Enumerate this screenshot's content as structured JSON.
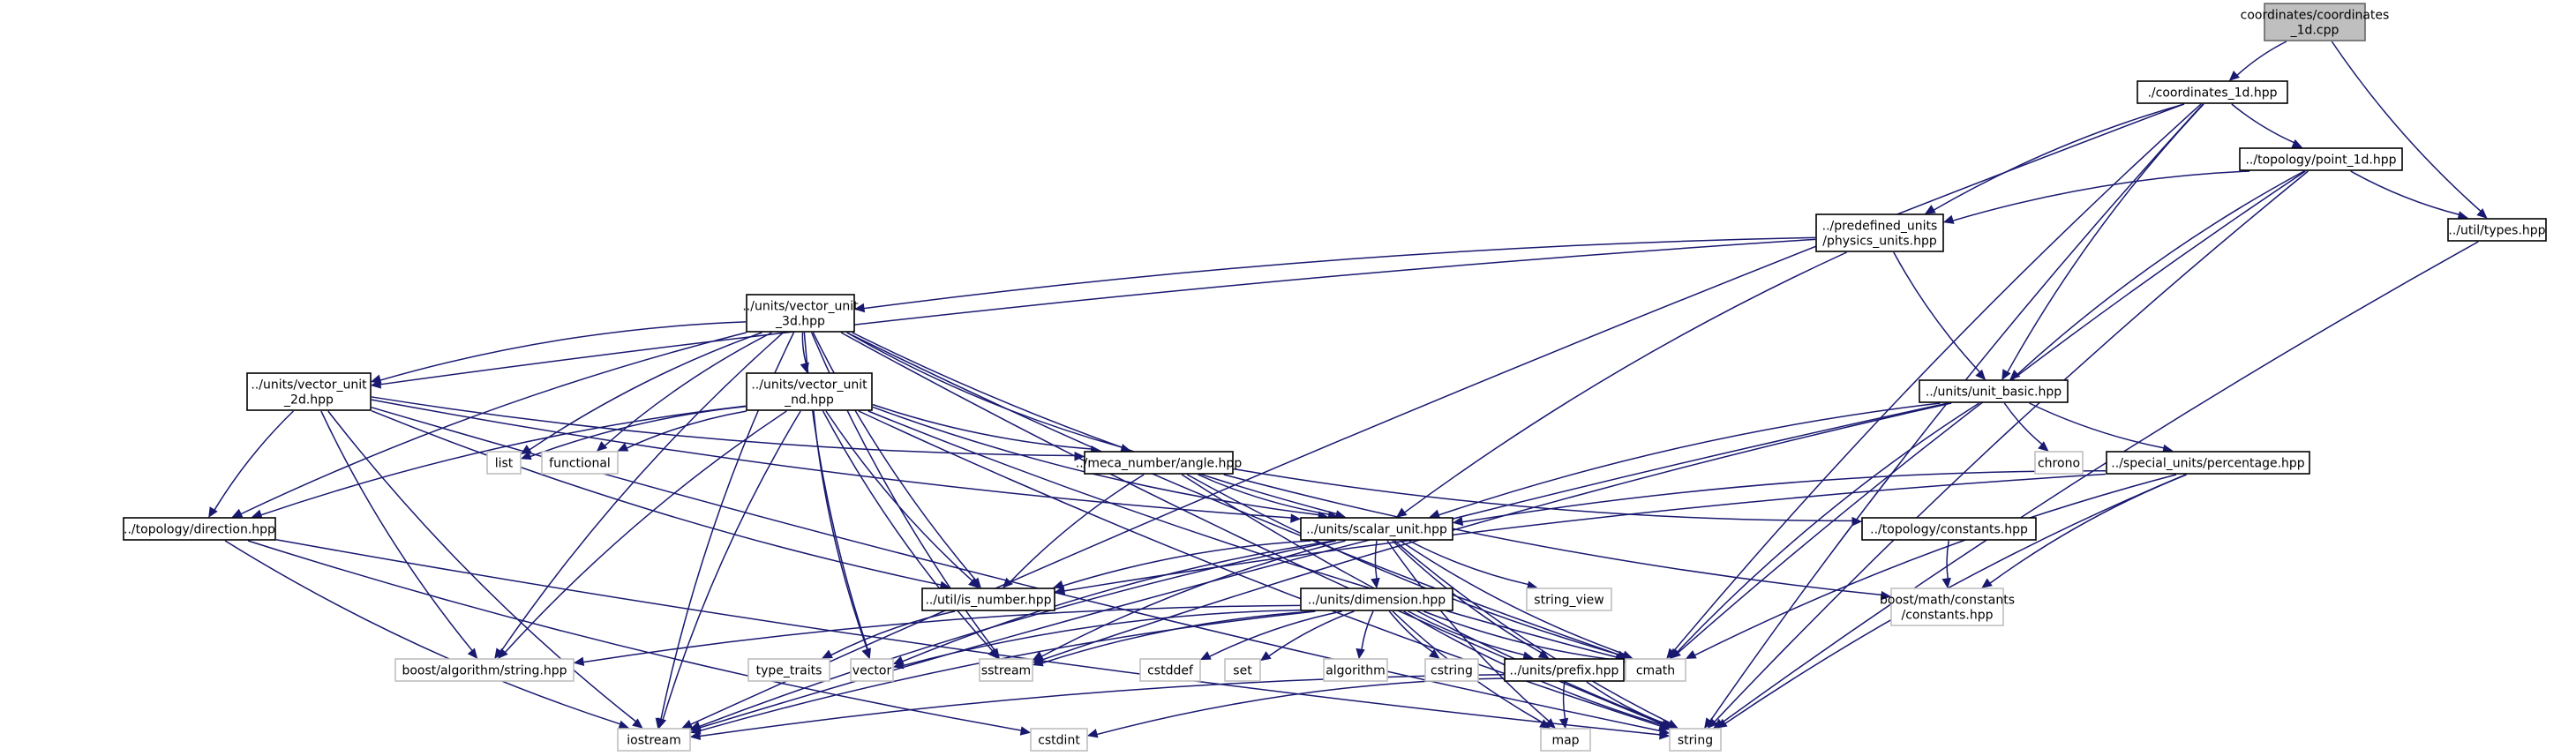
{
  "diagram": {
    "type": "include-dependency-graph",
    "colors": {
      "edge": "#191970",
      "root_fill": "#bfbfbf",
      "root_border": "#666666",
      "project_border": "#000000",
      "system_border": "#bfbfbf"
    },
    "nodes": [
      {
        "id": "root",
        "lines": [
          "coordinates/coordinates",
          "_1d.cpp"
        ],
        "kind": "root"
      },
      {
        "id": "coord1d",
        "lines": [
          "./coordinates_1d.hpp"
        ],
        "kind": "project"
      },
      {
        "id": "point1d",
        "lines": [
          "../topology/point_1d.hpp"
        ],
        "kind": "project"
      },
      {
        "id": "types",
        "lines": [
          "../util/types.hpp"
        ],
        "kind": "project"
      },
      {
        "id": "physunits",
        "lines": [
          "../predefined_units",
          "/physics_units.hpp"
        ],
        "kind": "project"
      },
      {
        "id": "vec3d",
        "lines": [
          "../units/vector_unit",
          "_3d.hpp"
        ],
        "kind": "project"
      },
      {
        "id": "vec2d",
        "lines": [
          "../units/vector_unit",
          "_2d.hpp"
        ],
        "kind": "project"
      },
      {
        "id": "vecnd",
        "lines": [
          "../units/vector_unit",
          "_nd.hpp"
        ],
        "kind": "project"
      },
      {
        "id": "unitbasic",
        "lines": [
          "../units/unit_basic.hpp"
        ],
        "kind": "project"
      },
      {
        "id": "angle",
        "lines": [
          "../meca_number/angle.hpp"
        ],
        "kind": "project"
      },
      {
        "id": "percentage",
        "lines": [
          "../special_units/percentage.hpp"
        ],
        "kind": "project"
      },
      {
        "id": "direction",
        "lines": [
          "../topology/direction.hpp"
        ],
        "kind": "project"
      },
      {
        "id": "scalar",
        "lines": [
          "../units/scalar_unit.hpp"
        ],
        "kind": "project"
      },
      {
        "id": "tconst",
        "lines": [
          "../topology/constants.hpp"
        ],
        "kind": "project"
      },
      {
        "id": "isnumber",
        "lines": [
          "../util/is_number.hpp"
        ],
        "kind": "project"
      },
      {
        "id": "dimension",
        "lines": [
          "../units/dimension.hpp"
        ],
        "kind": "project"
      },
      {
        "id": "prefix",
        "lines": [
          "../units/prefix.hpp"
        ],
        "kind": "project"
      },
      {
        "id": "list",
        "lines": [
          "list"
        ],
        "kind": "system"
      },
      {
        "id": "functional",
        "lines": [
          "functional"
        ],
        "kind": "system"
      },
      {
        "id": "chrono",
        "lines": [
          "chrono"
        ],
        "kind": "system"
      },
      {
        "id": "string_view",
        "lines": [
          "string_view"
        ],
        "kind": "system"
      },
      {
        "id": "boostconst",
        "lines": [
          "boost/math/constants",
          "/constants.hpp"
        ],
        "kind": "system"
      },
      {
        "id": "boostalg",
        "lines": [
          "boost/algorithm/string.hpp"
        ],
        "kind": "system"
      },
      {
        "id": "type_traits",
        "lines": [
          "type_traits"
        ],
        "kind": "system"
      },
      {
        "id": "vector",
        "lines": [
          "vector"
        ],
        "kind": "system"
      },
      {
        "id": "sstream",
        "lines": [
          "sstream"
        ],
        "kind": "system"
      },
      {
        "id": "cstddef",
        "lines": [
          "cstddef"
        ],
        "kind": "system"
      },
      {
        "id": "set",
        "lines": [
          "set"
        ],
        "kind": "system"
      },
      {
        "id": "algorithm",
        "lines": [
          "algorithm"
        ],
        "kind": "system"
      },
      {
        "id": "cstring",
        "lines": [
          "cstring"
        ],
        "kind": "system"
      },
      {
        "id": "cmath",
        "lines": [
          "cmath"
        ],
        "kind": "system"
      },
      {
        "id": "iostream",
        "lines": [
          "iostream"
        ],
        "kind": "system"
      },
      {
        "id": "cstdint",
        "lines": [
          "cstdint"
        ],
        "kind": "system"
      },
      {
        "id": "map",
        "lines": [
          "map"
        ],
        "kind": "system"
      },
      {
        "id": "string",
        "lines": [
          "string"
        ],
        "kind": "system"
      }
    ],
    "edges": [
      [
        "root",
        "coord1d"
      ],
      [
        "root",
        "types"
      ],
      [
        "coord1d",
        "point1d"
      ],
      [
        "coord1d",
        "physunits"
      ],
      [
        "coord1d",
        "unitbasic"
      ],
      [
        "coord1d",
        "iostream"
      ],
      [
        "coord1d",
        "cmath"
      ],
      [
        "coord1d",
        "string"
      ],
      [
        "point1d",
        "types"
      ],
      [
        "point1d",
        "physunits"
      ],
      [
        "point1d",
        "unitbasic"
      ],
      [
        "point1d",
        "cmath"
      ],
      [
        "point1d",
        "string"
      ],
      [
        "types",
        "string"
      ],
      [
        "physunits",
        "vec3d"
      ],
      [
        "physunits",
        "vec2d"
      ],
      [
        "physunits",
        "unitbasic"
      ],
      [
        "physunits",
        "scalar"
      ],
      [
        "vec3d",
        "vec2d"
      ],
      [
        "vec3d",
        "vecnd"
      ],
      [
        "vec3d",
        "angle"
      ],
      [
        "vec3d",
        "direction"
      ],
      [
        "vec3d",
        "scalar"
      ],
      [
        "vec3d",
        "isnumber"
      ],
      [
        "vec3d",
        "list"
      ],
      [
        "vec3d",
        "functional"
      ],
      [
        "vec3d",
        "boostalg"
      ],
      [
        "vec3d",
        "vector"
      ],
      [
        "vec3d",
        "sstream"
      ],
      [
        "vec3d",
        "cmath"
      ],
      [
        "vec3d",
        "iostream"
      ],
      [
        "vec3d",
        "string"
      ],
      [
        "vec2d",
        "angle"
      ],
      [
        "vec2d",
        "direction"
      ],
      [
        "vec2d",
        "scalar"
      ],
      [
        "vec2d",
        "isnumber"
      ],
      [
        "vec2d",
        "boostalg"
      ],
      [
        "vec2d",
        "iostream"
      ],
      [
        "vec2d",
        "string"
      ],
      [
        "vecnd",
        "angle"
      ],
      [
        "vecnd",
        "direction"
      ],
      [
        "vecnd",
        "scalar"
      ],
      [
        "vecnd",
        "isnumber"
      ],
      [
        "vecnd",
        "list"
      ],
      [
        "vecnd",
        "functional"
      ],
      [
        "vecnd",
        "boostalg"
      ],
      [
        "vecnd",
        "vector"
      ],
      [
        "vecnd",
        "sstream"
      ],
      [
        "vecnd",
        "cmath"
      ],
      [
        "vecnd",
        "iostream"
      ],
      [
        "vecnd",
        "string"
      ],
      [
        "unitbasic",
        "scalar"
      ],
      [
        "unitbasic",
        "percentage"
      ],
      [
        "unitbasic",
        "chrono"
      ],
      [
        "unitbasic",
        "sstream"
      ],
      [
        "unitbasic",
        "cmath"
      ],
      [
        "unitbasic",
        "iostream"
      ],
      [
        "angle",
        "scalar"
      ],
      [
        "angle",
        "tconst"
      ],
      [
        "angle",
        "isnumber"
      ],
      [
        "angle",
        "boostconst"
      ],
      [
        "angle",
        "cmath"
      ],
      [
        "angle",
        "string"
      ],
      [
        "percentage",
        "scalar"
      ],
      [
        "percentage",
        "isnumber"
      ],
      [
        "percentage",
        "boostconst"
      ],
      [
        "percentage",
        "cmath"
      ],
      [
        "percentage",
        "string"
      ],
      [
        "tconst",
        "boostconst"
      ],
      [
        "direction",
        "iostream"
      ],
      [
        "direction",
        "string"
      ],
      [
        "direction",
        "cstdint"
      ],
      [
        "scalar",
        "isnumber"
      ],
      [
        "scalar",
        "dimension"
      ],
      [
        "scalar",
        "prefix"
      ],
      [
        "scalar",
        "string_view"
      ],
      [
        "scalar",
        "vector"
      ],
      [
        "scalar",
        "sstream"
      ],
      [
        "scalar",
        "cmath"
      ],
      [
        "scalar",
        "iostream"
      ],
      [
        "scalar",
        "map"
      ],
      [
        "scalar",
        "string"
      ],
      [
        "isnumber",
        "type_traits"
      ],
      [
        "dimension",
        "prefix"
      ],
      [
        "dimension",
        "boostalg"
      ],
      [
        "dimension",
        "vector"
      ],
      [
        "dimension",
        "sstream"
      ],
      [
        "dimension",
        "cstddef"
      ],
      [
        "dimension",
        "set"
      ],
      [
        "dimension",
        "algorithm"
      ],
      [
        "dimension",
        "cstring"
      ],
      [
        "dimension",
        "cmath"
      ],
      [
        "dimension",
        "iostream"
      ],
      [
        "dimension",
        "map"
      ],
      [
        "dimension",
        "string"
      ],
      [
        "prefix",
        "iostream"
      ],
      [
        "prefix",
        "cstdint"
      ],
      [
        "prefix",
        "map"
      ],
      [
        "prefix",
        "string"
      ]
    ]
  }
}
